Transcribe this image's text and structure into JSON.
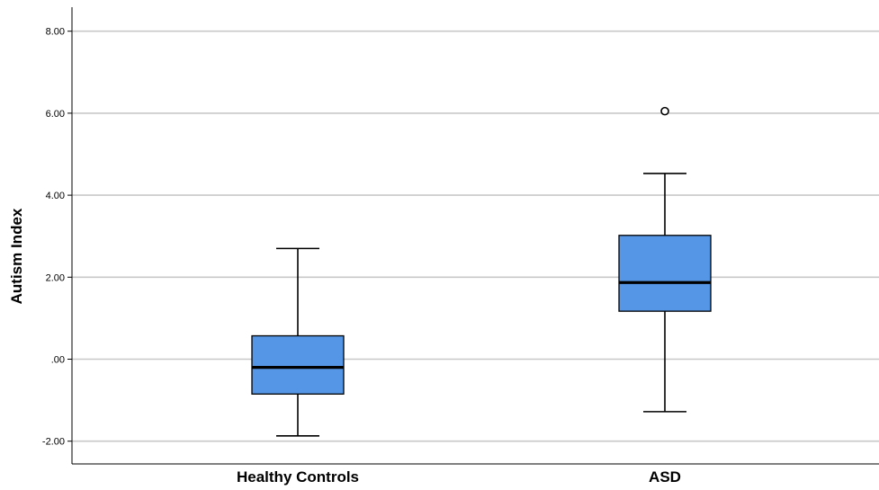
{
  "chart_data": {
    "type": "boxplot",
    "title": "",
    "xlabel": "",
    "ylabel": "Autism Index",
    "ylim": [
      -2.6,
      8.6
    ],
    "yticks": [
      8,
      6,
      4,
      2,
      0,
      -2
    ],
    "ytick_labels": [
      "8.00",
      "6.00",
      "4.00",
      "2.00",
      ".00",
      "-2.00"
    ],
    "grid": "horizontal",
    "categories": [
      "Healthy Controls",
      "ASD"
    ],
    "boxes": [
      {
        "category": "Healthy Controls",
        "min": -1.87,
        "q1": -0.85,
        "median": -0.2,
        "q3": 0.57,
        "max": 2.7,
        "outliers": []
      },
      {
        "category": "ASD",
        "min": -1.28,
        "q1": 1.17,
        "median": 1.87,
        "q3": 3.02,
        "max": 4.53,
        "outliers": [
          6.05
        ]
      }
    ],
    "colors": {
      "box_fill": "#5596e6",
      "line": "#000000",
      "grid": "#c8c8c8",
      "outlier_fill": "#ffffff"
    }
  }
}
